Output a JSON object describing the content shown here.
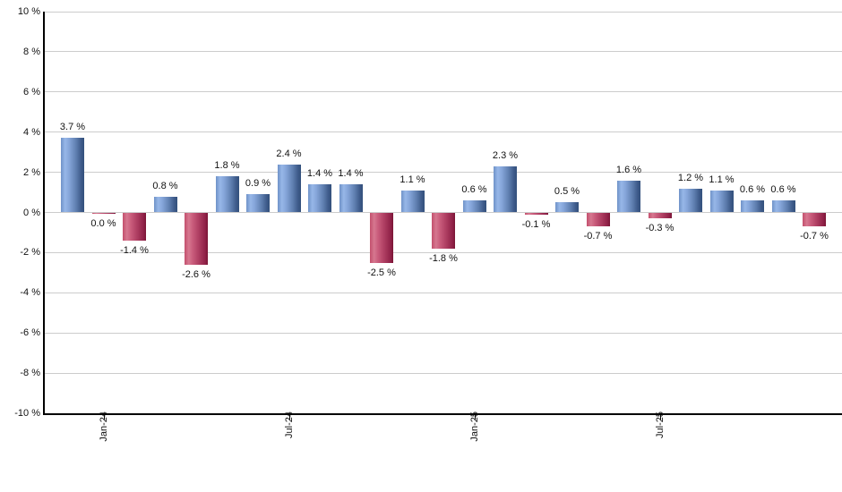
{
  "chart_data": {
    "type": "bar",
    "title": "",
    "unit": "%",
    "values": [
      3.7,
      0.0,
      -1.4,
      0.8,
      -2.6,
      1.8,
      0.9,
      2.4,
      1.4,
      1.4,
      -2.5,
      1.1,
      -1.8,
      0.6,
      2.3,
      -0.1,
      0.5,
      -0.7,
      1.6,
      -0.3,
      1.2,
      1.1,
      0.6,
      0.6,
      -0.7
    ],
    "bar_labels": [
      "3.7 %",
      "0.0 %",
      "-1.4 %",
      "0.8 %",
      "-2.6 %",
      "1.8 %",
      "0.9 %",
      "2.4 %",
      "1.4 %",
      "1.4 %",
      "-2.5 %",
      "1.1 %",
      "-1.8 %",
      "0.6 %",
      "2.3 %",
      "-0.1 %",
      "0.5 %",
      "-0.7 %",
      "1.6 %",
      "-0.3 %",
      "1.2 %",
      "1.1 %",
      "0.6 %",
      "0.6 %",
      "-0.7 %"
    ],
    "x_axis": {
      "ticks": [
        {
          "bar_index": 1,
          "label": "Jan-24"
        },
        {
          "bar_index": 7,
          "label": "Jul-24"
        },
        {
          "bar_index": 13,
          "label": "Jan-25"
        },
        {
          "bar_index": 19,
          "label": "Jul-25"
        }
      ]
    },
    "y_axis": {
      "min": -10,
      "max": 10,
      "step": 2,
      "tick_labels": [
        "10 %",
        "8 %",
        "6 %",
        "4 %",
        "2 %",
        "0 %",
        "-2 %",
        "-4 %",
        "-6 %",
        "-8 %",
        "-10 %"
      ],
      "grid": true
    },
    "legend": null,
    "colors": {
      "positive_bar": "#6f92c8",
      "positive_bar_highlight": "#97b7e8",
      "positive_bar_shadow": "#33507c",
      "negative_bar": "#c34f6d",
      "negative_bar_highlight": "#d6778f",
      "negative_bar_shadow": "#791535",
      "gridline": "#cccccc",
      "axis": "#000000",
      "text": "#111111"
    }
  }
}
